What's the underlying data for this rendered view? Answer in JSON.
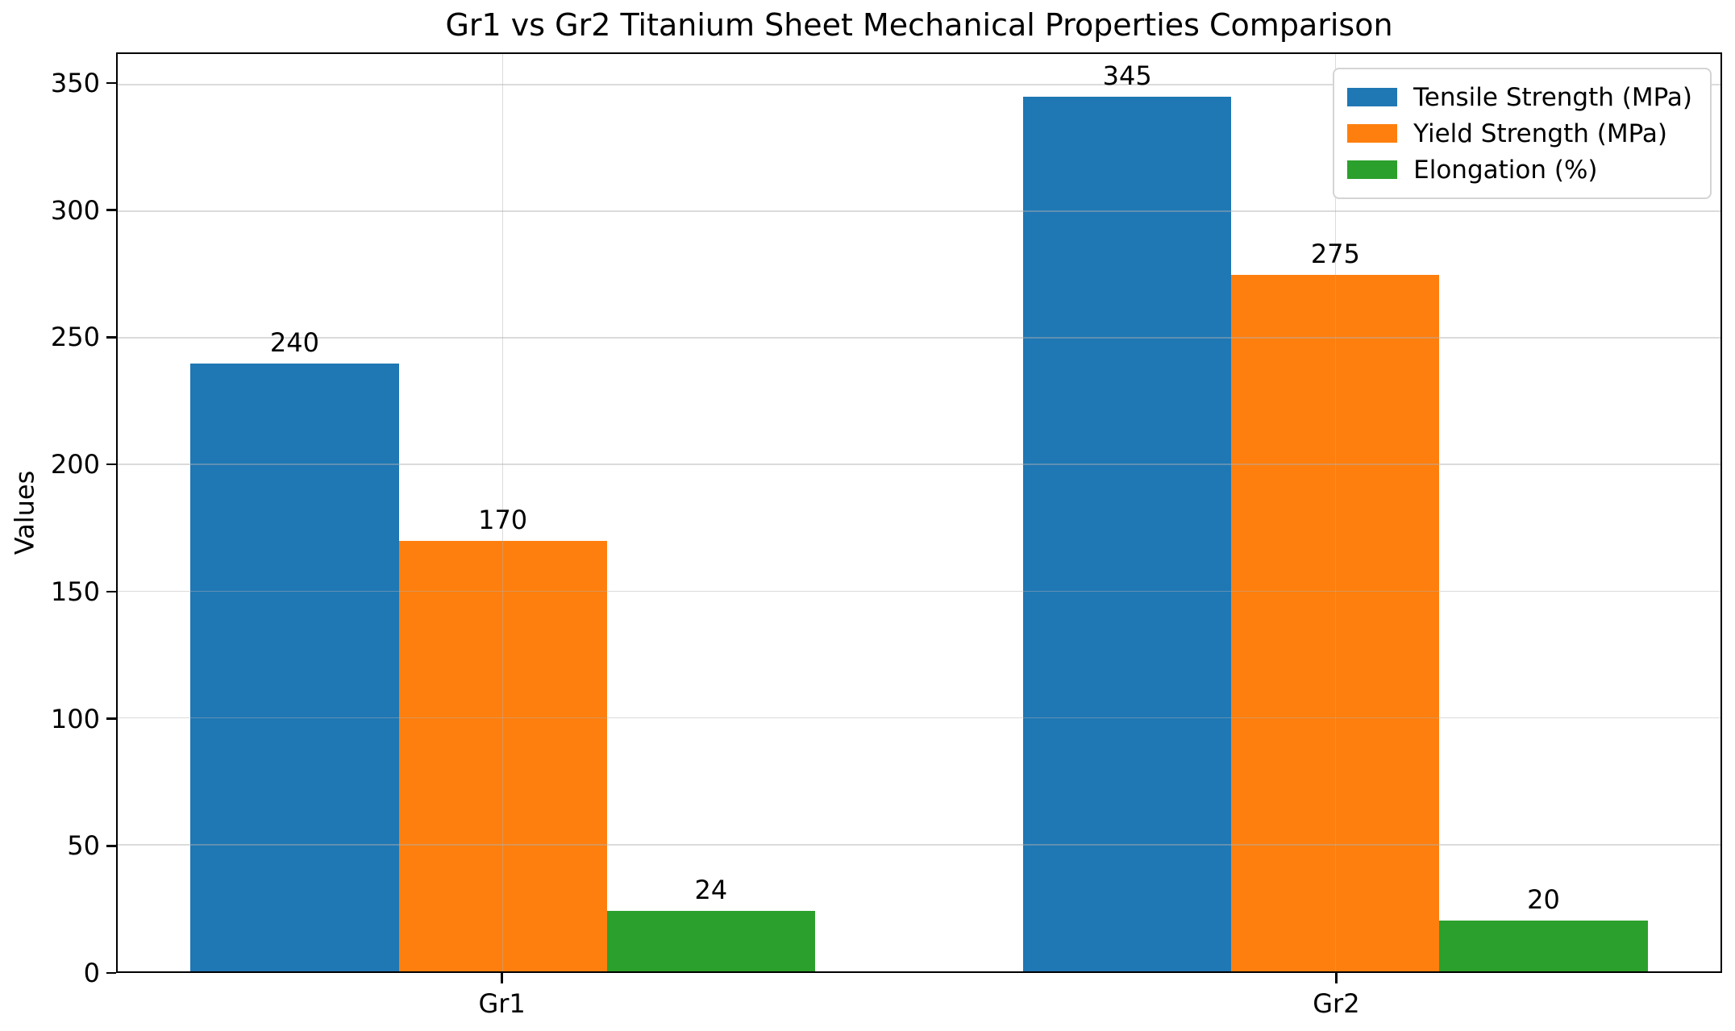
{
  "chart_data": {
    "type": "bar",
    "title": "Gr1 vs Gr2 Titanium Sheet Mechanical Properties Comparison",
    "xlabel": "",
    "ylabel": "Values",
    "categories": [
      "Gr1",
      "Gr2"
    ],
    "series": [
      {
        "name": "Tensile Strength (MPa)",
        "color": "#1f77b4",
        "values": [
          240,
          345
        ]
      },
      {
        "name": "Yield Strength (MPa)",
        "color": "#ff7f0e",
        "values": [
          170,
          275
        ]
      },
      {
        "name": "Elongation (%)",
        "color": "#2ca02c",
        "values": [
          24,
          20
        ]
      }
    ],
    "bar_value_labels_shown": true,
    "y_ticks": [
      0,
      50,
      100,
      150,
      200,
      250,
      300,
      350
    ],
    "ylim": [
      0,
      362
    ],
    "xlim": [
      -0.4625,
      1.4625
    ],
    "bar_width_units": 0.25,
    "grid": true,
    "grid_above_bars": true,
    "legend_position": "upper right",
    "axis_color": "#000000",
    "grid_color": "#b0b0b0",
    "background_color": "#ffffff"
  }
}
